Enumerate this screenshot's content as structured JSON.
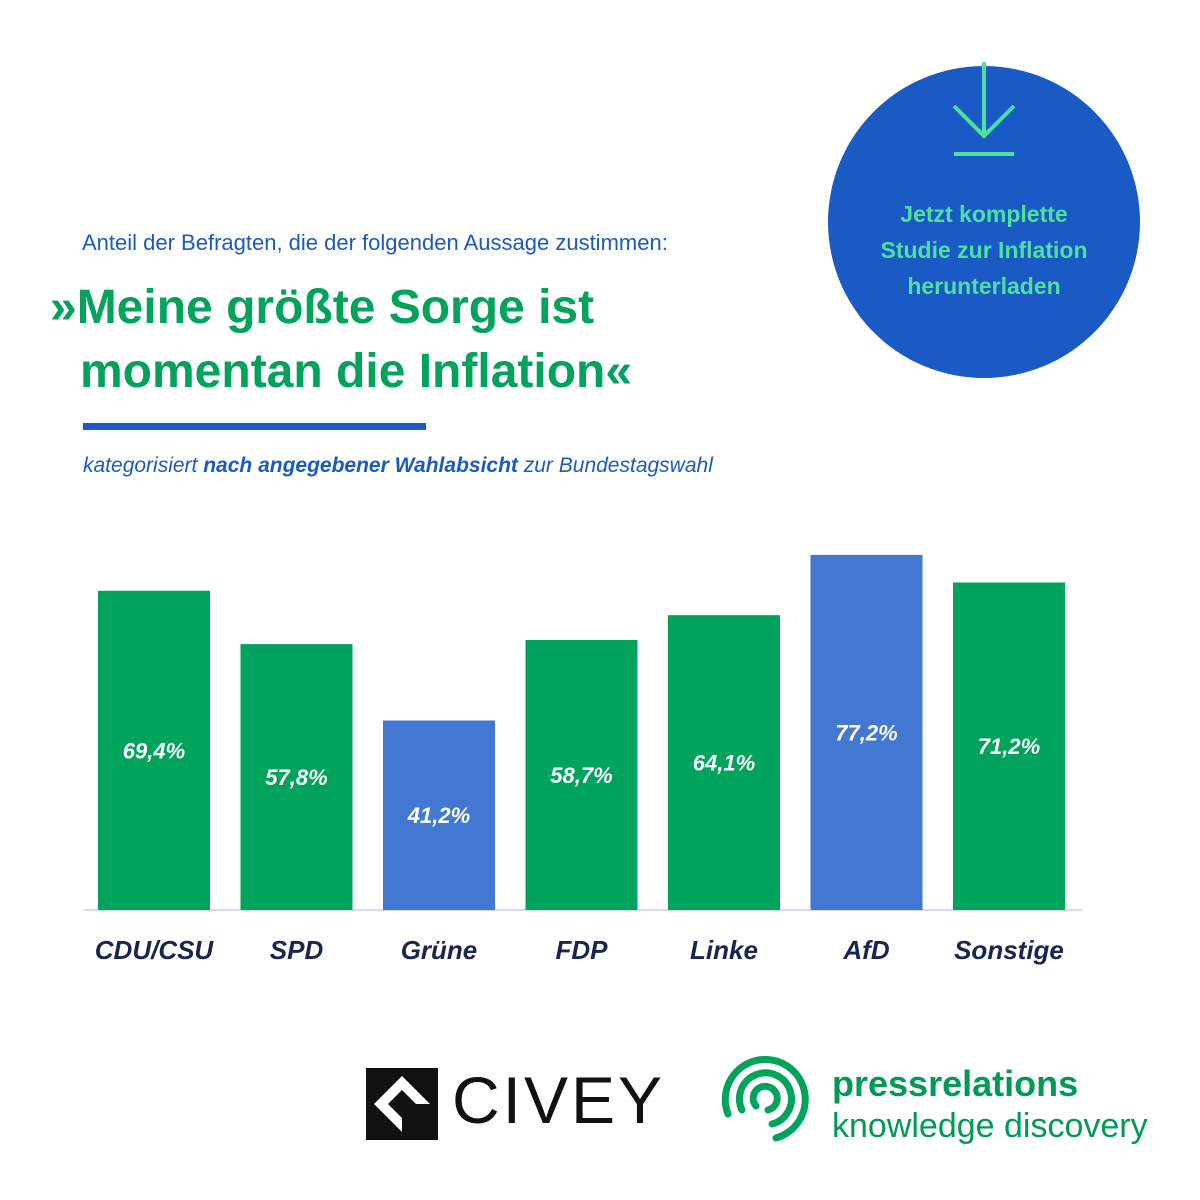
{
  "download": {
    "line1": "Jetzt komplette",
    "line2": "Studie zur Inflation",
    "line3": "herunterladen",
    "icon": "download-arrow-icon"
  },
  "question": "Anteil der Befragten, die der folgenden Aussage zustimmen:",
  "headline": {
    "line1": "»Meine größte Sorge ist",
    "line2": "momentan die Inflation«"
  },
  "subtitle": {
    "pre": "kategorisiert ",
    "bold": "nach angegebener Wahlabsicht",
    "post": " zur Bundestagswahl"
  },
  "colors": {
    "green": "#00a35c",
    "blue": "#4277d2",
    "brand_blue": "#1a5ac4",
    "mint": "#4de0a0",
    "label_navy": "#1a2450"
  },
  "chart_data": {
    "type": "bar",
    "categories": [
      "CDU/CSU",
      "SPD",
      "Grüne",
      "FDP",
      "Linke",
      "AfD",
      "Sonstige"
    ],
    "values": [
      69.4,
      57.8,
      41.2,
      58.7,
      64.1,
      77.2,
      71.2
    ],
    "value_labels": [
      "69,4%",
      "57,8%",
      "41,2%",
      "58,7%",
      "64,1%",
      "77,2%",
      "71,2%"
    ],
    "bar_colors": [
      "green",
      "green",
      "blue",
      "green",
      "green",
      "blue",
      "green"
    ],
    "title": "»Meine größte Sorge ist momentan die Inflation«",
    "ylim": [
      0,
      80
    ],
    "grid": false,
    "legend": "none"
  },
  "logos": {
    "civey": "CIVEY",
    "pressrelations_name": "pressrelations",
    "pressrelations_tagline": "knowledge discovery"
  }
}
